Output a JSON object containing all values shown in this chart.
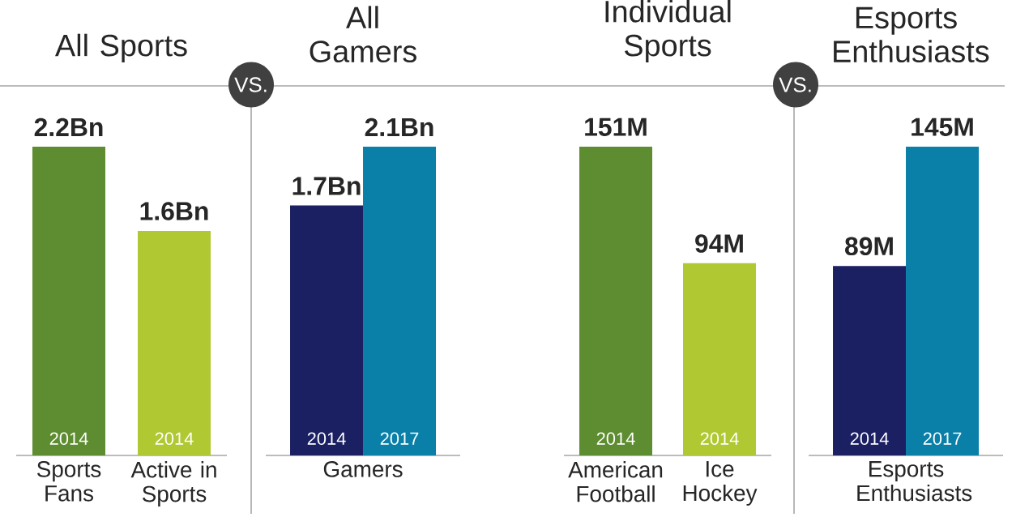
{
  "chart_data": [
    {
      "type": "bar",
      "title": "All Sports",
      "categories": [
        "Sports Fans",
        "Active in Sports"
      ],
      "annotations": [
        "VS."
      ],
      "series": [
        {
          "name": "2014",
          "colors": [
            "#5e8c31",
            "#b0c832"
          ],
          "values": [
            2.2,
            1.6
          ],
          "value_labels": [
            "2.2Bn",
            "1.6Bn"
          ]
        }
      ]
    },
    {
      "type": "bar",
      "title": "All Gamers",
      "categories": [
        "Gamers"
      ],
      "series": [
        {
          "name": "2014",
          "color": "#1b2062",
          "values": [
            1.7
          ],
          "value_labels": [
            "1.7Bn"
          ]
        },
        {
          "name": "2017",
          "color": "#0a7fa8",
          "values": [
            2.1
          ],
          "value_labels": [
            "2.1Bn"
          ]
        }
      ]
    },
    {
      "type": "bar",
      "title": "Individual Sports",
      "categories": [
        "American Football",
        "Ice Hockey"
      ],
      "annotations": [
        "VS."
      ],
      "series": [
        {
          "name": "2014",
          "colors": [
            "#5e8c31",
            "#b0c832"
          ],
          "values": [
            151,
            94
          ],
          "value_labels": [
            "151M",
            "94M"
          ]
        }
      ]
    },
    {
      "type": "bar",
      "title": "Esports Enthusiasts",
      "categories": [
        "Esports Enthusiasts"
      ],
      "series": [
        {
          "name": "2014",
          "color": "#1b2062",
          "values": [
            89
          ],
          "value_labels": [
            "89M"
          ]
        },
        {
          "name": "2017",
          "color": "#0a7fa8",
          "values": [
            145
          ],
          "value_labels": [
            "145M"
          ]
        }
      ]
    }
  ]
}
